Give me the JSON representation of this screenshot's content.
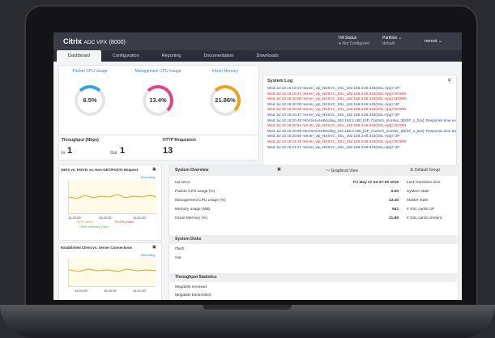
{
  "header": {
    "brand": "Citrix",
    "product": "ADC VPX",
    "model": "(8000)",
    "ha_label": "HA Status",
    "ha_value": "Not Configured",
    "partition_label": "Partition",
    "partition_value": "default",
    "user": "nsroot"
  },
  "tabs": [
    "Dashboard",
    "Configuration",
    "Reporting",
    "Documentation",
    "Downloads"
  ],
  "gauges": [
    {
      "title": "Packet CPU Usage",
      "value": "6.5%",
      "color": "#29a8e0"
    },
    {
      "title": "Management CPU Usage",
      "value": "13.4%",
      "color": "#e0418a"
    },
    {
      "title": "InUse Memory",
      "value": "21.86%",
      "color": "#f0a020"
    }
  ],
  "throughput": {
    "title": "Throughput (Mbps)",
    "in_label": "In",
    "in_value": "1",
    "out_label": "Out",
    "out_value": "1"
  },
  "http": {
    "title": "HTTP Requests/s",
    "value": "13"
  },
  "syslog": {
    "title": "System Log",
    "lines": [
      {
        "t": "Wed Jul 10 15:19:24 'server_vip_NSSVC_SSL_192.168.3.66:443(SSL-App)' UP",
        "s": "up"
      },
      {
        "t": "Wed Jul 10 15:19:41 'server_vip_NSSVC_SSL_192.168.3.66:443(SSL-App)' DOWN",
        "s": "down"
      },
      {
        "t": "Wed Jul 10 15:20:08 'server_vip_NSSVC_SSL_192.168.3.66:443(SSL-App)' DOWN",
        "s": "down"
      },
      {
        "t": "Wed Jul 10 15:20:08 'server_vip_NSSVC_SSL_192.168.3.66:443(SSL-App)' UP",
        "s": "up"
      },
      {
        "t": "Wed Jul 10 15:20:35 'server_vip_NSSVC_SSL_192.168.3.66:443(SSL-App)' DOWN",
        "s": "down"
      },
      {
        "t": "Wed Jul 10 15:20:37 'server_vip_NSSVC_SSL_192.168.3.66:443(SSL-App)' UP",
        "s": "up"
      },
      {
        "t": "Wed Jul 10 15:20:49 'MonServiceBinding_192.168.3.180_[SP_Custom_monitor_3]SSF_1_5xx]: Response time exce",
        "s": "up"
      },
      {
        "t": "Wed Jul 10 15:20:54 'server_vip_NSSVC_SSL_192.168.3.66:443(SSL-App)' DOWN",
        "s": "down"
      },
      {
        "t": "Wed Jul 10 15:20:58 'MonServiceBinding_192.168.3.180_[SP_Custom_monitor_3]SSF_1_5xx]: Response time back t",
        "s": "up"
      },
      {
        "t": "Wed Jul 10 15:20:56 'server_vip_NSSVC_SSL_192.168.3.66:443(SSL-App)' UP",
        "s": "up"
      },
      {
        "t": "Wed Jul 10 15:21:25 'server_vip_NSSVC_SSL_192.168.3.66:443(SSL-App)' DOWN",
        "s": "down"
      },
      {
        "t": "Wed Jul 10 15:21:27 'server_vip_NSSVC_SSL_192.168.3.66:443(SSL-App)' UP",
        "s": "up"
      }
    ]
  },
  "graph1": {
    "title": "GETs vs. POSTs vs. Non-GET/POSTs Request",
    "link": "Reporting",
    "times": [
      "15:20:00",
      "15:20:30",
      "15:21:00"
    ],
    "legend": [
      "GETs (Rate)",
      "POSTs (Rate)",
      "Other methods (Rate)"
    ]
  },
  "graph2": {
    "title": "Established Client vs. Server Connections",
    "link": "Reporting",
    "times": [
      "15:20:00",
      "15:20:30",
      "15:21:00"
    ]
  },
  "overview": {
    "title": "System Overview",
    "graphical": "Graphical View",
    "group": "Default Group",
    "left": [
      {
        "k": "Up since",
        "v": "Fri May 17 04:47:09 2019"
      },
      {
        "k": "Packet CPU usage (%)",
        "v": "6.50"
      },
      {
        "k": "Management CPU usage (%)",
        "v": "13.40"
      },
      {
        "k": "Memory usage (MB)",
        "v": "562"
      },
      {
        "k": "InUse Memory (%)",
        "v": "21.86"
      }
    ],
    "right": [
      "Last Transition time",
      "System state",
      "Master state",
      "# SSL cards UP",
      "# SSL cards present"
    ],
    "disks_title": "System Disks",
    "disks": [
      "/flash",
      "/var"
    ],
    "tp_title": "Throughput Statistics",
    "tp": [
      "Megabits received",
      "Megabits transmitted"
    ]
  }
}
